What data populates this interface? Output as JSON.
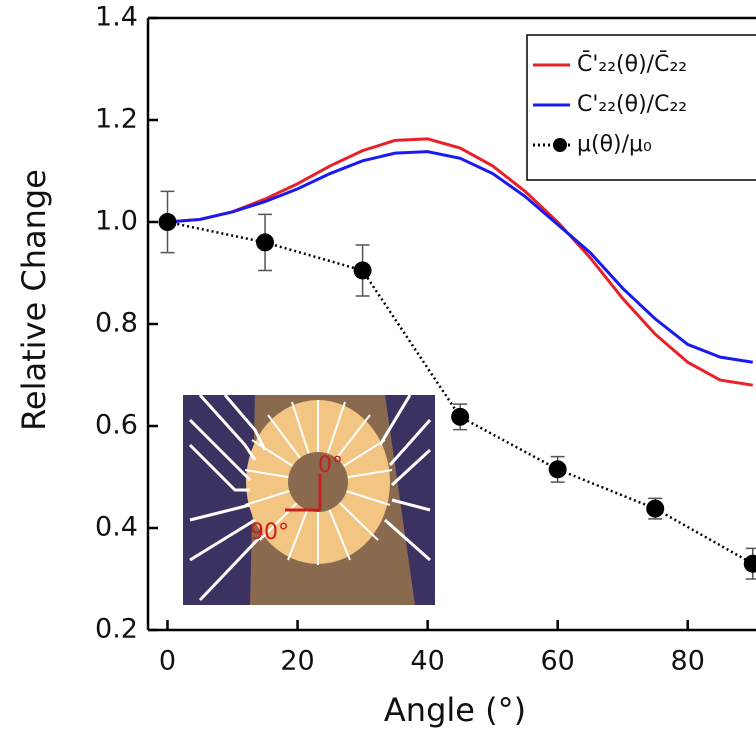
{
  "chart_data": {
    "type": "line",
    "xlabel": "Angle (°)",
    "ylabel": "Relative Change",
    "xlim": [
      -3,
      90.5
    ],
    "ylim": [
      0.2,
      1.4
    ],
    "xticks": [
      0,
      20,
      40,
      60,
      80
    ],
    "yticks": [
      0.2,
      0.4,
      0.6,
      0.8,
      {
        "value": 1,
        "label": "1.0"
      },
      1.2,
      1.4
    ],
    "legend": "upper right",
    "series": [
      {
        "name": "C̄'₂₂(θ)/C̄₂₂",
        "color": "#e8202a",
        "linestyle": "solid",
        "x": [
          0,
          5,
          10,
          15,
          20,
          25,
          30,
          35,
          40,
          45,
          50,
          55,
          60,
          65,
          70,
          75,
          80,
          85,
          90
        ],
        "values": [
          1.0,
          1.005,
          1.02,
          1.045,
          1.075,
          1.11,
          1.14,
          1.16,
          1.163,
          1.145,
          1.11,
          1.06,
          1.0,
          0.93,
          0.85,
          0.78,
          0.725,
          0.69,
          0.68
        ]
      },
      {
        "name": "C'₂₂(θ)/C₂₂",
        "color": "#1a1aee",
        "linestyle": "solid",
        "x": [
          0,
          5,
          10,
          15,
          20,
          25,
          30,
          35,
          40,
          45,
          50,
          55,
          60,
          65,
          70,
          75,
          80,
          85,
          90
        ],
        "values": [
          1.0,
          1.005,
          1.02,
          1.04,
          1.065,
          1.095,
          1.12,
          1.135,
          1.138,
          1.125,
          1.095,
          1.05,
          0.995,
          0.94,
          0.87,
          0.81,
          0.76,
          0.735,
          0.725
        ]
      },
      {
        "name": "μ(θ)/μ₀",
        "color": "#000000",
        "linestyle": "dotted",
        "marker": "circle",
        "x": [
          0,
          15,
          30,
          45,
          60,
          75,
          90
        ],
        "values": [
          1.0,
          0.96,
          0.905,
          0.618,
          0.515,
          0.438,
          0.33
        ],
        "errors": [
          0.06,
          0.055,
          0.05,
          0.025,
          0.025,
          0.02,
          0.03
        ]
      }
    ],
    "annotations": [
      "0°",
      "90°"
    ]
  }
}
